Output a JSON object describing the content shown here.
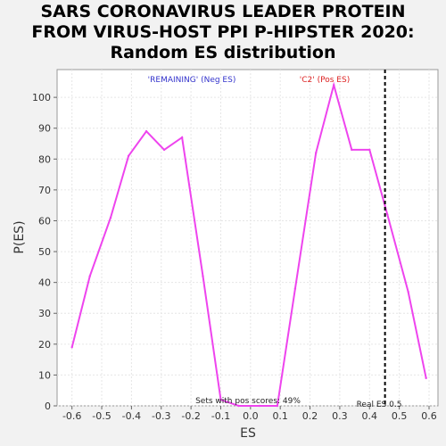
{
  "title_lines": [
    "SARS CORONAVIRUS LEADER PROTEIN",
    "FROM VIRUS-HOST PPI P-HIPSTER 2020:",
    "Random ES distribution"
  ],
  "chart_data": {
    "type": "line",
    "title": "SARS CORONAVIRUS LEADER PROTEIN FROM VIRUS-HOST PPI P-HIPSTER 2020: Random ES distribution",
    "xlabel": "ES",
    "ylabel": "P(ES)",
    "xlim": [
      -0.65,
      0.63
    ],
    "ylim": [
      0,
      109
    ],
    "x_ticks": [
      "-0.6",
      "-0.5",
      "-0.4",
      "-0.3",
      "-0.2",
      "-0.1",
      "0.0",
      "0.1",
      "0.2",
      "0.3",
      "0.4",
      "0.5",
      "0.6"
    ],
    "y_ticks": [
      "0",
      "10",
      "20",
      "30",
      "40",
      "50",
      "60",
      "70",
      "80",
      "90",
      "100"
    ],
    "grid": true,
    "series": [
      {
        "color": "#ee44ee",
        "x": [
          -0.6,
          -0.54,
          -0.47,
          -0.41,
          -0.35,
          -0.29,
          -0.23,
          -0.16,
          -0.1,
          -0.04,
          0.03,
          0.09,
          0.15,
          0.22,
          0.28,
          0.34,
          0.4,
          0.46,
          0.53,
          0.59
        ],
        "y": [
          19,
          42,
          61,
          81,
          89,
          83,
          87,
          42,
          2,
          0,
          0,
          0,
          38,
          82,
          104,
          83,
          83,
          62,
          37,
          9
        ]
      }
    ],
    "annotations": {
      "neg_label": "'REMAINING' (Neg ES)",
      "pos_label": "'C2' (Pos ES)",
      "pos_scores": "Sets with pos scores: 49%",
      "real_es_label": "Real ES 0.5"
    },
    "real_es": 0.452,
    "colors": {
      "neg": "#3333cc",
      "pos": "#dd2222",
      "line": "#ee44ee",
      "real_es": "#000000"
    }
  }
}
